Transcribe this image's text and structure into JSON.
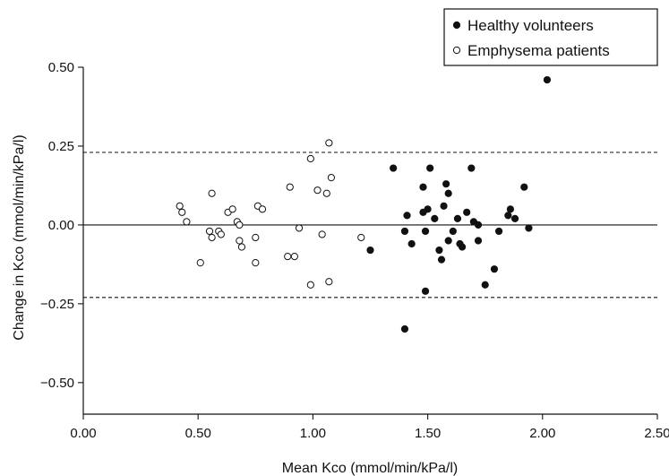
{
  "chart_data": {
    "type": "scatter",
    "xlabel": "Mean Kco (mmol/min/kPa/l)",
    "ylabel": "Change in Kco (mmol/min/kPa/l)",
    "xlim": [
      0,
      2.5
    ],
    "ylim": [
      -0.6,
      0.5
    ],
    "x_ticks": [
      "0.00",
      "0.50",
      "1.00",
      "1.50",
      "2.00",
      "2.50"
    ],
    "y_ticks": [
      "0.50",
      "0.25",
      "0.00",
      "−0.25",
      "−0.50"
    ],
    "grid": false,
    "legend_position": "top-right",
    "reference_lines": [
      {
        "y": 0.0,
        "style": "solid"
      },
      {
        "y": 0.23,
        "style": "dashed"
      },
      {
        "y": -0.23,
        "style": "dashed"
      }
    ],
    "series": [
      {
        "name": "Healthy volunteers",
        "marker": "filled-circle",
        "points": [
          [
            1.35,
            0.18
          ],
          [
            1.41,
            0.03
          ],
          [
            1.43,
            -0.06
          ],
          [
            1.4,
            -0.02
          ],
          [
            1.4,
            -0.33
          ],
          [
            1.25,
            -0.08
          ],
          [
            1.48,
            0.12
          ],
          [
            1.48,
            0.04
          ],
          [
            1.49,
            -0.02
          ],
          [
            1.49,
            -0.21
          ],
          [
            1.5,
            0.05
          ],
          [
            1.51,
            0.18
          ],
          [
            1.53,
            0.02
          ],
          [
            1.55,
            -0.08
          ],
          [
            1.56,
            -0.11
          ],
          [
            1.57,
            0.06
          ],
          [
            1.58,
            0.13
          ],
          [
            1.59,
            0.1
          ],
          [
            1.59,
            -0.05
          ],
          [
            1.61,
            -0.02
          ],
          [
            1.63,
            0.02
          ],
          [
            1.64,
            -0.06
          ],
          [
            1.65,
            -0.07
          ],
          [
            1.67,
            0.04
          ],
          [
            1.69,
            0.18
          ],
          [
            1.7,
            0.01
          ],
          [
            1.72,
            0.0
          ],
          [
            1.72,
            -0.05
          ],
          [
            1.75,
            -0.19
          ],
          [
            1.79,
            -0.14
          ],
          [
            1.81,
            -0.02
          ],
          [
            1.85,
            0.03
          ],
          [
            1.86,
            0.05
          ],
          [
            1.88,
            0.02
          ],
          [
            1.92,
            0.12
          ],
          [
            1.94,
            -0.01
          ],
          [
            2.02,
            0.46
          ]
        ]
      },
      {
        "name": "Emphysema patients",
        "marker": "open-circle",
        "points": [
          [
            0.42,
            0.06
          ],
          [
            0.43,
            0.04
          ],
          [
            0.45,
            0.01
          ],
          [
            0.51,
            -0.12
          ],
          [
            0.55,
            -0.02
          ],
          [
            0.56,
            -0.04
          ],
          [
            0.56,
            0.1
          ],
          [
            0.59,
            -0.02
          ],
          [
            0.6,
            -0.03
          ],
          [
            0.63,
            0.04
          ],
          [
            0.65,
            0.05
          ],
          [
            0.67,
            0.01
          ],
          [
            0.68,
            0.0
          ],
          [
            0.68,
            -0.05
          ],
          [
            0.69,
            -0.07
          ],
          [
            0.75,
            -0.04
          ],
          [
            0.75,
            -0.12
          ],
          [
            0.76,
            0.06
          ],
          [
            0.78,
            0.05
          ],
          [
            0.89,
            -0.1
          ],
          [
            0.9,
            0.12
          ],
          [
            0.92,
            -0.1
          ],
          [
            0.94,
            -0.01
          ],
          [
            0.99,
            0.21
          ],
          [
            0.99,
            -0.19
          ],
          [
            1.02,
            0.11
          ],
          [
            1.04,
            -0.03
          ],
          [
            1.06,
            0.1
          ],
          [
            1.07,
            0.26
          ],
          [
            1.07,
            -0.18
          ],
          [
            1.08,
            0.15
          ],
          [
            1.21,
            -0.04
          ]
        ]
      }
    ]
  }
}
